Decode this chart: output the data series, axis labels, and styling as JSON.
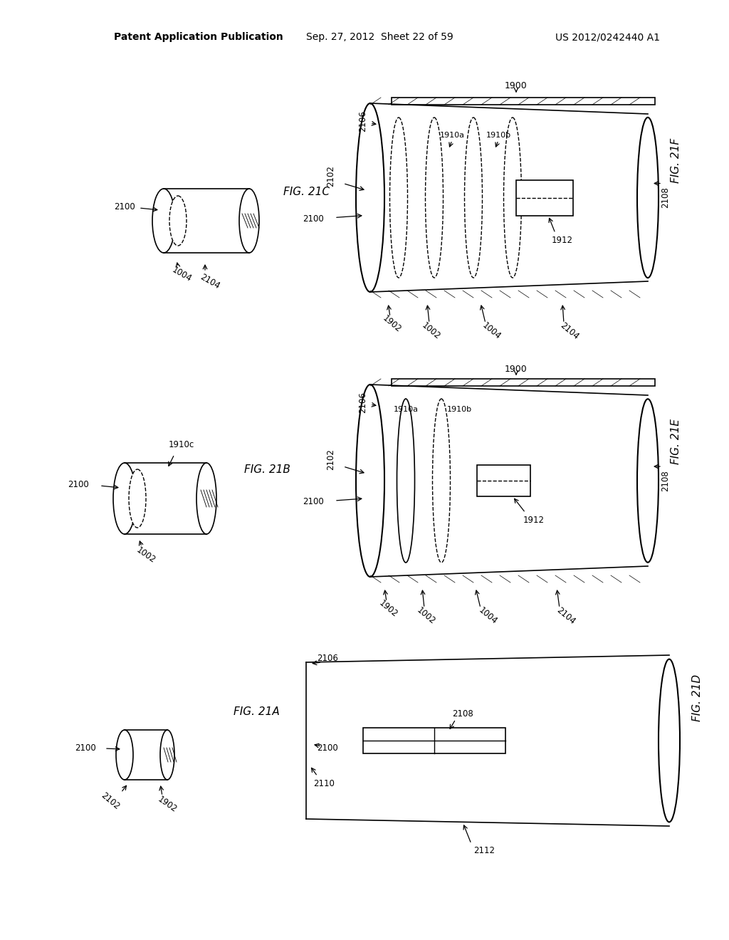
{
  "bg_color": "#ffffff",
  "line_color": "#000000",
  "header_text": "Patent Application Publication",
  "header_date": "Sep. 27, 2012  Sheet 22 of 59",
  "header_patent": "US 2012/0242440 A1",
  "fig_labels": [
    "FIG. 21A",
    "FIG. 21B",
    "FIG. 21C",
    "FIG. 21D",
    "FIG. 21E",
    "FIG. 21F"
  ],
  "ref_numbers": {
    "2100": "2100",
    "2102": "2102",
    "1902": "1902",
    "2106": "2106",
    "2108": "2108",
    "2110": "2110",
    "2112": "2112",
    "1004": "1004",
    "2104": "2104",
    "1910a": "1910a",
    "1910b": "1910b",
    "1912": "1912",
    "1910c": "1910c",
    "1902_2": "1902",
    "2100_2": "2100",
    "1002": "1002"
  }
}
